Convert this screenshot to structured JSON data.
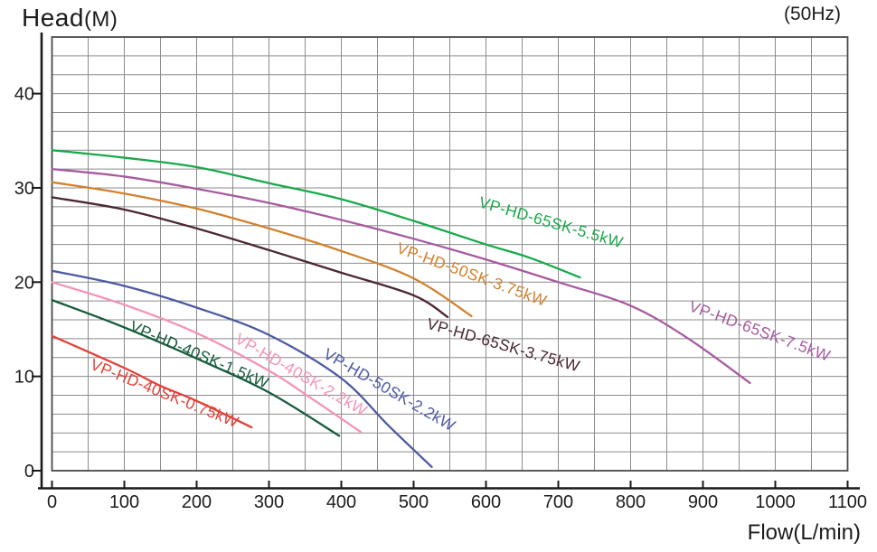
{
  "page": {
    "head_label": "Head",
    "head_unit": "(M)",
    "freq_label": "(50Hz)",
    "flow_label": "Flow(L/min)"
  },
  "chart_data": {
    "type": "line",
    "xlabel": "Flow(L/min)",
    "ylabel": "Head(M)",
    "frequency_note": "(50Hz)",
    "xlim": [
      0,
      1100
    ],
    "ylim": [
      0,
      46
    ],
    "x_ticks": [
      0,
      100,
      200,
      300,
      400,
      500,
      600,
      700,
      800,
      900,
      1000,
      1100
    ],
    "y_ticks": [
      0,
      10,
      20,
      30,
      40
    ],
    "grid": {
      "on": true,
      "minor_x_step": 50,
      "minor_y_step": 2
    },
    "legend_position": "labels-along-curves",
    "series": [
      {
        "name": "VP-HD-65SK-5.5kW",
        "color": "#18a94b",
        "points": [
          [
            0,
            34
          ],
          [
            100,
            33.2
          ],
          [
            200,
            32.2
          ],
          [
            300,
            30.5
          ],
          [
            400,
            28.8
          ],
          [
            500,
            26.5
          ],
          [
            600,
            24.0
          ],
          [
            660,
            22.6
          ],
          [
            730,
            20.5
          ]
        ],
        "label": {
          "flow": 688,
          "head": 25.8,
          "angle": 16
        }
      },
      {
        "name": "VP-HD-65SK-7.5kW",
        "color": "#a65ba0",
        "points": [
          [
            0,
            32
          ],
          [
            100,
            31.2
          ],
          [
            200,
            29.9
          ],
          [
            300,
            28.4
          ],
          [
            400,
            26.6
          ],
          [
            500,
            24.6
          ],
          [
            600,
            22.4
          ],
          [
            700,
            20.0
          ],
          [
            800,
            17.5
          ],
          [
            880,
            14.0
          ],
          [
            965,
            9.3
          ]
        ],
        "label": {
          "flow": 976,
          "head": 14.3,
          "angle": 20
        }
      },
      {
        "name": "VP-HD-50SK-3.75kW",
        "color": "#d2812e",
        "points": [
          [
            0,
            30.6
          ],
          [
            100,
            29.4
          ],
          [
            200,
            27.8
          ],
          [
            300,
            25.7
          ],
          [
            400,
            23.3
          ],
          [
            500,
            20.4
          ],
          [
            580,
            16.4
          ]
        ],
        "label": {
          "flow": 578,
          "head": 20.3,
          "angle": 20
        }
      },
      {
        "name": "VP-HD-65SK-3.75kW",
        "color": "#4a2733",
        "points": [
          [
            0,
            29
          ],
          [
            100,
            27.7
          ],
          [
            200,
            25.7
          ],
          [
            300,
            23.4
          ],
          [
            400,
            21.0
          ],
          [
            500,
            18.6
          ],
          [
            547,
            16.3
          ]
        ],
        "label": {
          "flow": 622,
          "head": 12.8,
          "angle": 16
        }
      },
      {
        "name": "VP-HD-50SK-2.2kW",
        "color": "#4d5aa3",
        "points": [
          [
            0,
            21.2
          ],
          [
            100,
            19.6
          ],
          [
            200,
            17.3
          ],
          [
            300,
            14.4
          ],
          [
            400,
            9.8
          ],
          [
            465,
            4.8
          ],
          [
            525,
            0.4
          ]
        ],
        "label": {
          "flow": 463,
          "head": 8.1,
          "angle": 30
        }
      },
      {
        "name": "VP-HD-40SK-2.2kW",
        "color": "#f493b5",
        "points": [
          [
            0,
            20.0
          ],
          [
            100,
            17.6
          ],
          [
            200,
            14.6
          ],
          [
            300,
            10.6
          ],
          [
            360,
            7.6
          ],
          [
            427,
            4.1
          ]
        ],
        "label": {
          "flow": 341,
          "head": 9.7,
          "angle": 30
        }
      },
      {
        "name": "VP-HD-40SK-1.5kW",
        "color": "#175c3c",
        "points": [
          [
            0,
            18.1
          ],
          [
            100,
            15.2
          ],
          [
            200,
            11.9
          ],
          [
            300,
            8.3
          ],
          [
            397,
            3.7
          ]
        ],
        "label": {
          "flow": 201,
          "head": 11.8,
          "angle": 23
        }
      },
      {
        "name": "VP-HD-40SK-0.75kW",
        "color": "#e2423a",
        "points": [
          [
            0,
            14.3
          ],
          [
            100,
            10.9
          ],
          [
            150,
            9.0
          ],
          [
            200,
            7.4
          ],
          [
            276,
            4.6
          ]
        ],
        "label": {
          "flow": 153,
          "head": 7.7,
          "angle": 22
        }
      }
    ],
    "style": {
      "grid_color": "#8c8c8c",
      "box_color": "#4a4a4a",
      "axis_color": "#1a1a1a",
      "text_color": "#1c1c1c"
    }
  }
}
